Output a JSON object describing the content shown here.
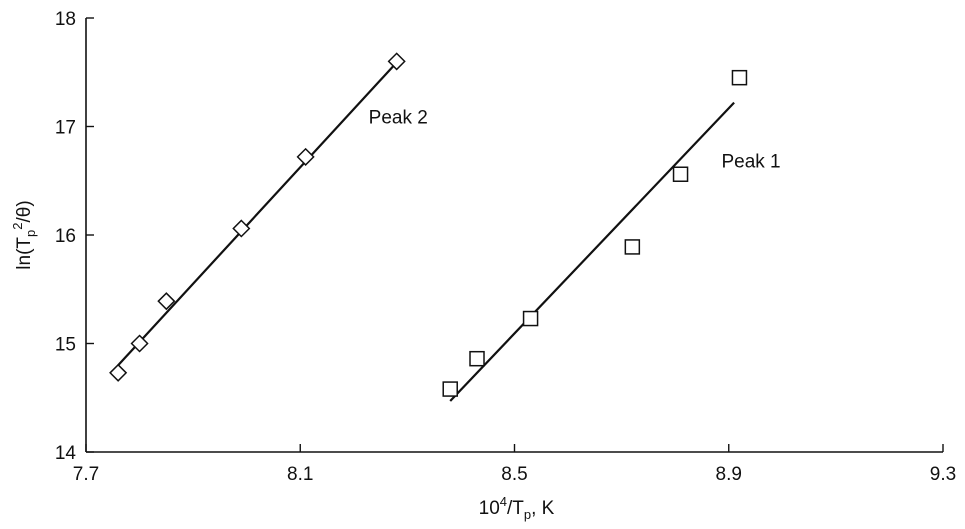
{
  "chart_data": {
    "type": "scatter",
    "xlim": [
      7.7,
      9.3
    ],
    "ylim": [
      14,
      18
    ],
    "x_ticks": [
      "7.7",
      "8.1",
      "8.5",
      "8.9",
      "9.3"
    ],
    "y_ticks": [
      "14",
      "15",
      "16",
      "17",
      "18"
    ],
    "xlabel": {
      "prefix": "10",
      "sup": "4",
      "mid": "/T",
      "sub": "p",
      "suffix": ", K"
    },
    "ylabel": {
      "prefix": "ln(T",
      "sub": "p",
      "sup": "2",
      "suffix": "/θ)"
    },
    "grid": false,
    "series": [
      {
        "name": "Peak 2",
        "marker": "diamond",
        "points": [
          [
            7.76,
            14.73
          ],
          [
            7.8,
            15.0
          ],
          [
            7.85,
            15.39
          ],
          [
            7.99,
            16.06
          ],
          [
            8.11,
            16.72
          ],
          [
            8.28,
            17.6
          ]
        ],
        "fit": [
          [
            7.76,
            14.8
          ],
          [
            8.28,
            17.59
          ]
        ]
      },
      {
        "name": "Peak 1",
        "marker": "square",
        "points": [
          [
            8.38,
            14.58
          ],
          [
            8.43,
            14.86
          ],
          [
            8.53,
            15.23
          ],
          [
            8.72,
            15.89
          ],
          [
            8.81,
            16.56
          ],
          [
            8.92,
            17.45
          ]
        ],
        "fit": [
          [
            8.38,
            14.47
          ],
          [
            8.91,
            17.22
          ]
        ]
      }
    ]
  }
}
